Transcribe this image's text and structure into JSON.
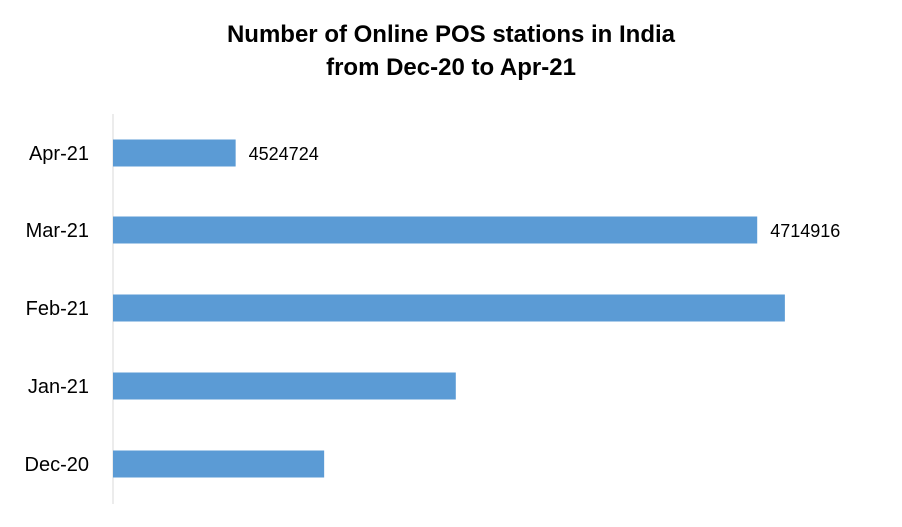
{
  "chart_data": {
    "type": "bar",
    "orientation": "horizontal",
    "title_line1": "Number of Online POS stations in India",
    "title_line2": "from Dec-20 to Apr-21",
    "categories": [
      "Apr-21",
      "Mar-21",
      "Feb-21",
      "Jan-21",
      "Dec-20"
    ],
    "values": [
      4524724,
      4714916,
      4725000,
      4605000,
      4557000
    ],
    "data_labels": [
      "4524724",
      "4714916",
      "",
      "",
      ""
    ],
    "xlim": [
      4480000,
      4740000
    ],
    "grid": false,
    "legend": "none",
    "bar_color": "#5B9BD5",
    "axis_color": "#D9D9D9"
  }
}
